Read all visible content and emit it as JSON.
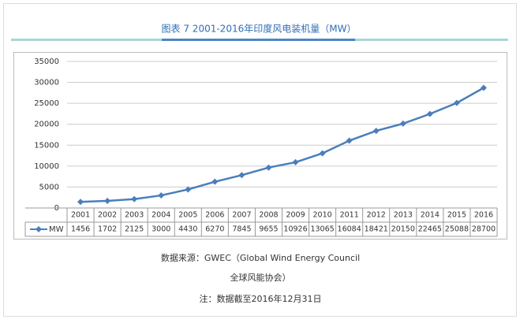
{
  "chart_data": {
    "type": "line",
    "title": "图表 7  2001-2016年印度风电装机量（MW）",
    "categories": [
      "2001",
      "2002",
      "2003",
      "2004",
      "2005",
      "2006",
      "2007",
      "2008",
      "2009",
      "2010",
      "2011",
      "2012",
      "2013",
      "2014",
      "2015",
      "2016"
    ],
    "series": [
      {
        "name": "MW",
        "color": "#4a7ebb",
        "values": [
          1456,
          1702,
          2125,
          3000,
          4430,
          6270,
          7845,
          9655,
          10926,
          13065,
          16084,
          18421,
          20150,
          22465,
          25088,
          28700
        ]
      }
    ],
    "ylim": [
      0,
      35000
    ],
    "yticks": [
      0,
      5000,
      10000,
      15000,
      20000,
      25000,
      30000,
      35000
    ],
    "grid": true,
    "notes": [
      "数据来源：GWEC（Global Wind Energy Council",
      "全球风能协会）",
      "注：数据截至2016年12月31日"
    ]
  }
}
